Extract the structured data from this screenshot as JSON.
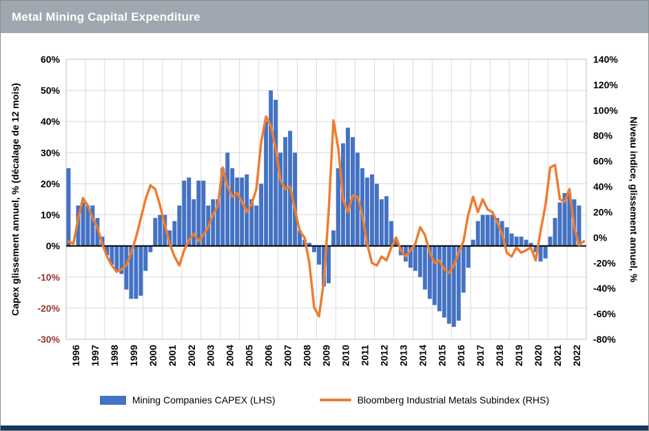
{
  "header": {
    "title": "Metal Mining Capital Expenditure"
  },
  "colors": {
    "header_bg": "#9fa8b0",
    "capex_bar": "#4472C4",
    "metals_line": "#ED7D31",
    "negative_tick": "#963634",
    "gridline": "#D9D9D9",
    "plot_border": "#BFBFBF",
    "zero_line": "#000000",
    "bottom_bar": "#17375E"
  },
  "chart_data": {
    "type": "bar+line combo (monthly series, shown at quarterly resolution)",
    "title": "Metal Mining Capital Expenditure",
    "left_axis": {
      "title": "Capex glissement annuel, % (décalage de 12 mois)",
      "min": -30,
      "max": 60,
      "step": 10,
      "tick_labels": [
        "60%",
        "50%",
        "40%",
        "30%",
        "20%",
        "10%",
        "0%",
        "-10%",
        "-20%",
        "-30%"
      ]
    },
    "right_axis": {
      "title": "Niveau indice, glissement annuel, %",
      "min": -80,
      "max": 140,
      "step": 20,
      "tick_labels": [
        "140%",
        "120%",
        "100%",
        "80%",
        "60%",
        "40%",
        "20%",
        "0%",
        "-20%",
        "-40%",
        "-60%",
        "-80%"
      ]
    },
    "x_axis": {
      "range": [
        1996,
        2023
      ],
      "tick_labels": [
        "1996",
        "1997",
        "1998",
        "1999",
        "2000",
        "2001",
        "2002",
        "2003",
        "2004",
        "2005",
        "2006",
        "2007",
        "2008",
        "2009",
        "2010",
        "2011",
        "2012",
        "2013",
        "2014",
        "2015",
        "2016",
        "2017",
        "2018",
        "2019",
        "2020",
        "2021",
        "2022"
      ]
    },
    "grid": "both",
    "legend_position": "bottom",
    "series": [
      {
        "name": "Mining Companies CAPEX (LHS)",
        "type": "bar",
        "axis": "left",
        "color": "#4472C4",
        "x_start": 1996.0,
        "x_step": 0.25,
        "values": [
          25,
          0,
          13,
          14,
          13,
          13,
          9,
          3,
          -3,
          -6,
          -8,
          -9,
          -14,
          -17,
          -17,
          -16,
          -8,
          -2,
          9,
          10,
          10,
          5,
          8,
          13,
          21,
          22,
          15,
          21,
          21,
          13,
          15,
          15,
          25,
          30,
          25,
          22,
          22,
          23,
          15,
          13,
          20,
          40,
          50,
          47,
          30,
          35,
          37,
          30,
          5,
          2,
          1,
          -2,
          -6,
          -13,
          -12,
          5,
          25,
          33,
          38,
          35,
          30,
          25,
          22,
          23,
          20,
          15,
          16,
          8,
          2,
          -3,
          -5,
          -7,
          -8,
          -10,
          -14,
          -17,
          -19,
          -21,
          -23,
          -25,
          -26,
          -24,
          -15,
          -7,
          2,
          8,
          10,
          10,
          10,
          9,
          8,
          6,
          4,
          3,
          3,
          2,
          1,
          -2,
          -5,
          -4,
          3,
          9,
          14,
          17,
          17,
          15,
          13
        ]
      },
      {
        "name": "Bloomberg Industrial Metals Subindex (RHS)",
        "type": "line",
        "axis": "right",
        "color": "#ED7D31",
        "x_start": 1996.0,
        "x_step": 0.25,
        "values": [
          -3,
          -5,
          15,
          31,
          25,
          15,
          8,
          -5,
          -15,
          -22,
          -27,
          -25,
          -22,
          -12,
          0,
          15,
          30,
          41,
          38,
          25,
          10,
          -5,
          -15,
          -22,
          -10,
          -2,
          3,
          -3,
          2,
          8,
          18,
          25,
          55,
          40,
          32,
          35,
          28,
          20,
          26,
          38,
          75,
          95,
          88,
          70,
          45,
          38,
          40,
          22,
          5,
          0,
          -20,
          -55,
          -62,
          -35,
          20,
          92,
          70,
          30,
          20,
          33,
          32,
          18,
          -5,
          -20,
          -22,
          -15,
          -18,
          -8,
          0,
          -10,
          -15,
          -10,
          -5,
          8,
          2,
          -12,
          -20,
          -18,
          -25,
          -28,
          -22,
          -12,
          -3,
          18,
          32,
          20,
          30,
          22,
          20,
          12,
          3,
          -12,
          -15,
          -8,
          -12,
          -10,
          -8,
          -18,
          5,
          25,
          55,
          57,
          30,
          28,
          38,
          8,
          -6,
          -3
        ]
      }
    ]
  },
  "legend": {
    "items": [
      {
        "label": "Mining Companies CAPEX (LHS)",
        "swatch": "bar",
        "color": "#4472C4"
      },
      {
        "label": "Bloomberg Industrial Metals Subindex (RHS)",
        "swatch": "line",
        "color": "#ED7D31"
      }
    ]
  }
}
